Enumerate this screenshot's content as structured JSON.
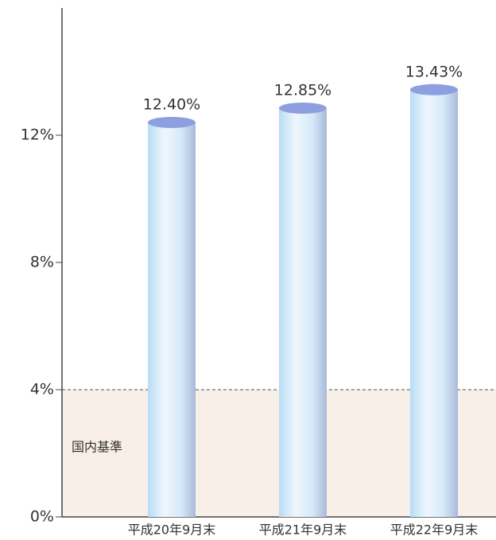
{
  "chart_data": {
    "type": "bar",
    "categories": [
      "平成20年9月末",
      "平成21年9月末",
      "平成22年9月末"
    ],
    "values": [
      12.4,
      12.85,
      13.43
    ],
    "value_labels": [
      "12.40%",
      "12.85%",
      "13.43%"
    ],
    "color": "#c9e4f7",
    "ylim": [
      0,
      16
    ],
    "yticks": [
      {
        "value": 0,
        "label": "0%"
      },
      {
        "value": 4,
        "label": "4%"
      },
      {
        "value": 8,
        "label": "8%"
      },
      {
        "value": 12,
        "label": "12%"
      }
    ],
    "reference_line": {
      "value": 4,
      "label": "国内基準"
    }
  }
}
